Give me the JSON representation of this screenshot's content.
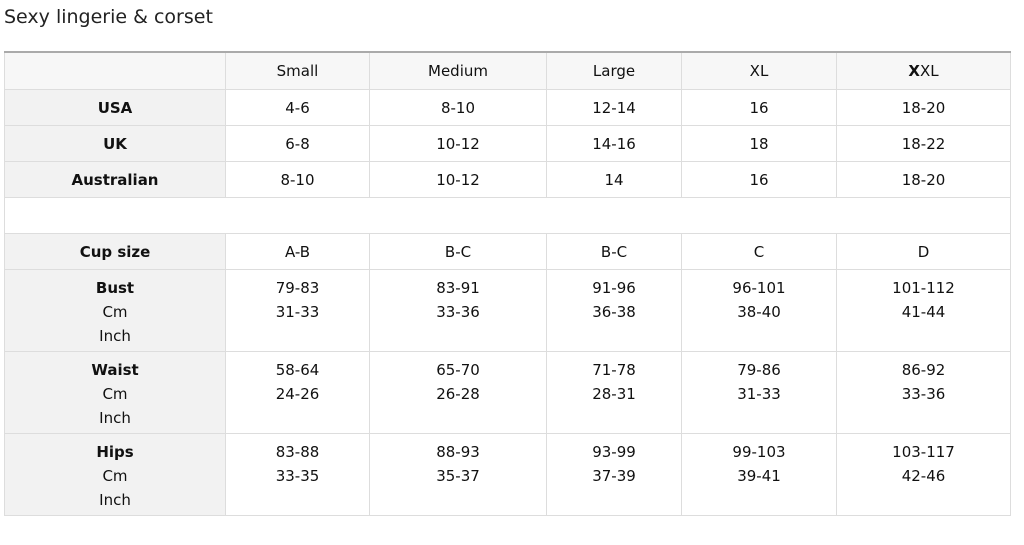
{
  "title": "Sexy lingerie & corset",
  "columns": [
    {
      "label": "Small"
    },
    {
      "label": "Medium"
    },
    {
      "label": "Large"
    },
    {
      "label": "XL"
    },
    {
      "bold": "X",
      "label": "XL"
    }
  ],
  "rows1": [
    {
      "label": "USA",
      "values": [
        "4-6",
        "8-10",
        "12-14",
        "16",
        "18-20"
      ]
    },
    {
      "label": "UK",
      "values": [
        "6-8",
        "10-12",
        "14-16",
        "18",
        "18-22"
      ]
    },
    {
      "label": "Australian",
      "values": [
        "8-10",
        "10-12",
        "14",
        "16",
        "18-20"
      ]
    }
  ],
  "cup": {
    "label": "Cup size",
    "values": [
      "A-B",
      "B-C",
      "B-C",
      "C",
      "D"
    ]
  },
  "units": {
    "cm": "Cm",
    "inch": "Inch"
  },
  "rows2": [
    {
      "label": "Bust",
      "cm": [
        "79-83",
        "83-91",
        "91-96",
        "96-101",
        "101-112"
      ],
      "inch": [
        "31-33",
        "33-36",
        "36-38",
        "38-40",
        "41-44"
      ]
    },
    {
      "label": "Waist",
      "cm": [
        "58-64",
        "65-70",
        "71-78",
        "79-86",
        "86-92"
      ],
      "inch": [
        "24-26",
        "26-28",
        "28-31",
        "31-33",
        "33-36"
      ]
    },
    {
      "label": "Hips",
      "cm": [
        "83-88",
        "88-93",
        "93-99",
        "99-103",
        "103-117"
      ],
      "inch": [
        "33-35",
        "35-37",
        "37-39",
        "39-41",
        "42-46"
      ]
    }
  ]
}
